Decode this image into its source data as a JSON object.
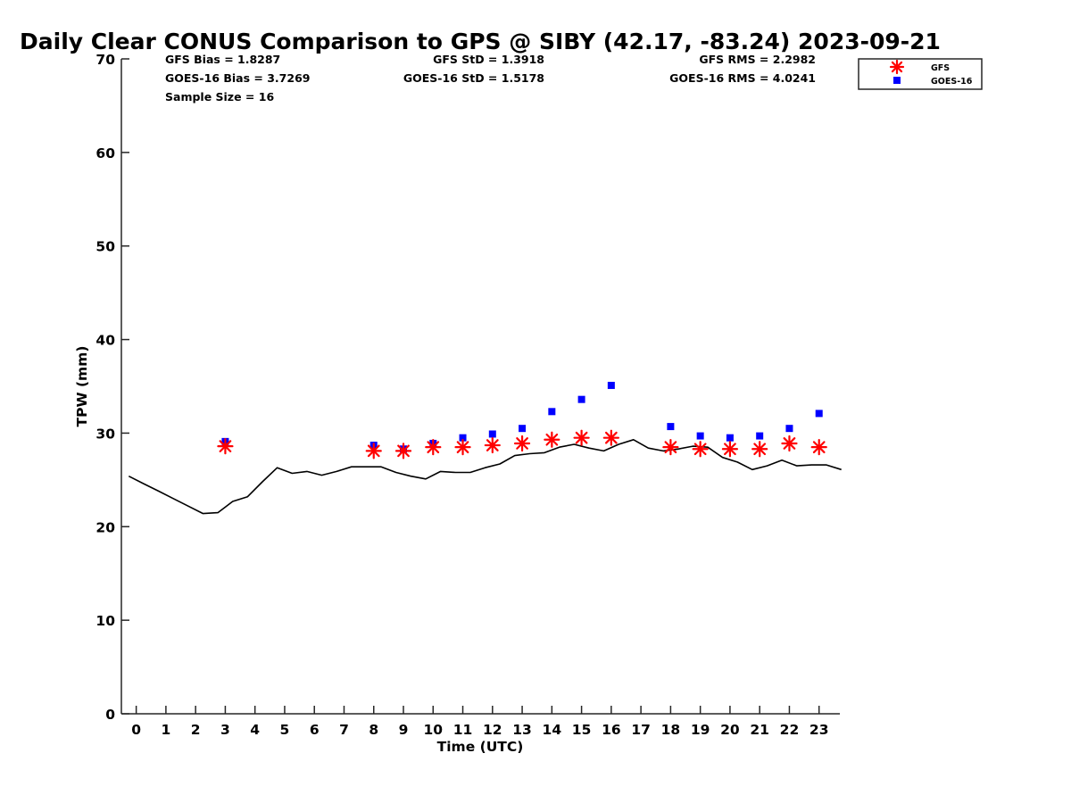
{
  "colors": {
    "gfs": "#ff0000",
    "goes": "#0000ff",
    "gps": "#000000",
    "axis": "#262626"
  },
  "stats": {
    "gfs_bias": "GFS Bias = 1.8287",
    "goes_bias": "GOES-16 Bias = 3.7269",
    "sample_size": "Sample Size = 16",
    "gfs_std": "GFS StD = 1.3918",
    "goes_std": "GOES-16 StD = 1.5178",
    "gfs_rms": "GFS RMS = 2.2982",
    "goes_rms": "GOES-16 RMS = 4.0241"
  },
  "chart_data": {
    "type": "scatter",
    "title": "Daily Clear CONUS Comparison to GPS @ SIBY (42.17, -83.24) 2023-09-21",
    "xlabel": "Time (UTC)",
    "ylabel": "TPW (mm)",
    "xlim": [
      -0.5,
      23.7
    ],
    "ylim": [
      0,
      70
    ],
    "yticks": [
      0,
      10,
      20,
      30,
      40,
      50,
      60,
      70
    ],
    "xticks": [
      0,
      1,
      2,
      3,
      4,
      5,
      6,
      7,
      8,
      9,
      10,
      11,
      12,
      13,
      14,
      15,
      16,
      17,
      18,
      19,
      20,
      21,
      22,
      23
    ],
    "grid": false,
    "legend_position": "top-right, outside plot",
    "series": [
      {
        "name": "GFS",
        "marker": "asterisk",
        "x": [
          3,
          8,
          9,
          10,
          11,
          12,
          13,
          14,
          15,
          16,
          18,
          19,
          20,
          21,
          22,
          23
        ],
        "y": [
          28.6,
          28.1,
          28.1,
          28.5,
          28.5,
          28.7,
          28.9,
          29.3,
          29.5,
          29.5,
          28.5,
          28.3,
          28.3,
          28.3,
          28.9,
          28.5
        ]
      },
      {
        "name": "GOES-16",
        "marker": "square",
        "x": [
          3,
          8,
          9,
          10,
          11,
          12,
          13,
          14,
          15,
          16,
          18,
          19,
          20,
          21,
          22,
          23
        ],
        "y": [
          29.1,
          28.7,
          28.3,
          28.9,
          29.5,
          29.9,
          30.5,
          32.3,
          33.6,
          35.1,
          30.7,
          29.7,
          29.5,
          29.7,
          30.5,
          32.1
        ]
      },
      {
        "name": "",
        "marker": "line",
        "x": [
          -0.25,
          0.25,
          0.75,
          1.25,
          1.75,
          2.25,
          2.75,
          3.25,
          3.75,
          4.25,
          4.75,
          5.25,
          5.75,
          6.25,
          6.75,
          7.25,
          7.75,
          8.25,
          8.75,
          9.25,
          9.75,
          10.25,
          10.75,
          11.25,
          11.75,
          12.25,
          12.75,
          13.25,
          13.75,
          14.25,
          14.75,
          15.25,
          15.75,
          16.25,
          16.75,
          17.25,
          17.75,
          18.25,
          18.75,
          19.25,
          19.75,
          20.25,
          20.75,
          21.25,
          21.75,
          22.25,
          22.75,
          23.25,
          23.75
        ],
        "y": [
          25.4,
          24.6,
          23.8,
          23.0,
          22.2,
          21.4,
          21.5,
          22.7,
          23.2,
          24.8,
          26.3,
          25.7,
          25.9,
          25.5,
          25.9,
          26.4,
          26.4,
          26.4,
          25.8,
          25.4,
          25.1,
          25.9,
          25.8,
          25.8,
          26.3,
          26.7,
          27.6,
          27.8,
          27.9,
          28.5,
          28.8,
          28.4,
          28.1,
          28.8,
          29.3,
          28.4,
          28.1,
          28.3,
          28.6,
          28.5,
          27.4,
          26.9,
          26.1,
          26.5,
          27.1,
          26.5,
          26.6,
          26.6,
          26.1
        ]
      }
    ]
  }
}
